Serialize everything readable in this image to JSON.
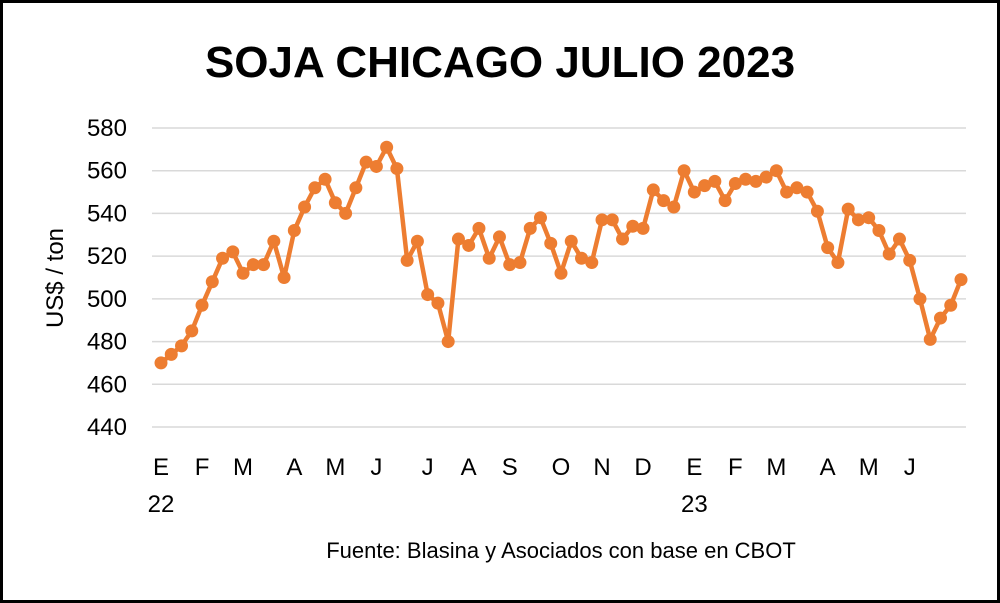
{
  "chart_data": {
    "type": "line",
    "title": "SOJA CHICAGO JULIO 2023",
    "xlabel": "",
    "ylabel": "US$ / ton",
    "ylim": [
      440,
      580
    ],
    "yticks": [
      "580",
      "560",
      "540",
      "520",
      "500",
      "480",
      "460",
      "440"
    ],
    "xticks": [
      {
        "label": "E",
        "index": 0,
        "sub": "22"
      },
      {
        "label": "F",
        "index": 4
      },
      {
        "label": "M",
        "index": 8
      },
      {
        "label": "A",
        "index": 13
      },
      {
        "label": "M",
        "index": 17
      },
      {
        "label": "J",
        "index": 21
      },
      {
        "label": "J",
        "index": 26
      },
      {
        "label": "A",
        "index": 30
      },
      {
        "label": "S",
        "index": 34
      },
      {
        "label": "O",
        "index": 39
      },
      {
        "label": "N",
        "index": 43
      },
      {
        "label": "D",
        "index": 47
      },
      {
        "label": "E",
        "index": 52,
        "sub": "23"
      },
      {
        "label": "F",
        "index": 56
      },
      {
        "label": "M",
        "index": 60
      },
      {
        "label": "A",
        "index": 65
      },
      {
        "label": "M",
        "index": 69
      },
      {
        "label": "J",
        "index": 73
      }
    ],
    "grid": true,
    "line_color": "#ED7D31",
    "series": [
      {
        "values": [
          470,
          474,
          478,
          485,
          497,
          508,
          519,
          522,
          512,
          516,
          516,
          527,
          510,
          532,
          543,
          552,
          556,
          545,
          540,
          552,
          564,
          562,
          571,
          561,
          518,
          527,
          502,
          498,
          480,
          528,
          525,
          533,
          519,
          529,
          516,
          517,
          533,
          538,
          526,
          512,
          527,
          519,
          517,
          537,
          537,
          528,
          534,
          533,
          551,
          546,
          543,
          560,
          550,
          553,
          555,
          546,
          554,
          556,
          555,
          557,
          560,
          550,
          552,
          550,
          541,
          524,
          517,
          542,
          537,
          538,
          532,
          521,
          528,
          518,
          500,
          481,
          491,
          497,
          509
        ]
      }
    ]
  },
  "source_text": "Fuente: Blasina y Asociados con base en CBOT"
}
